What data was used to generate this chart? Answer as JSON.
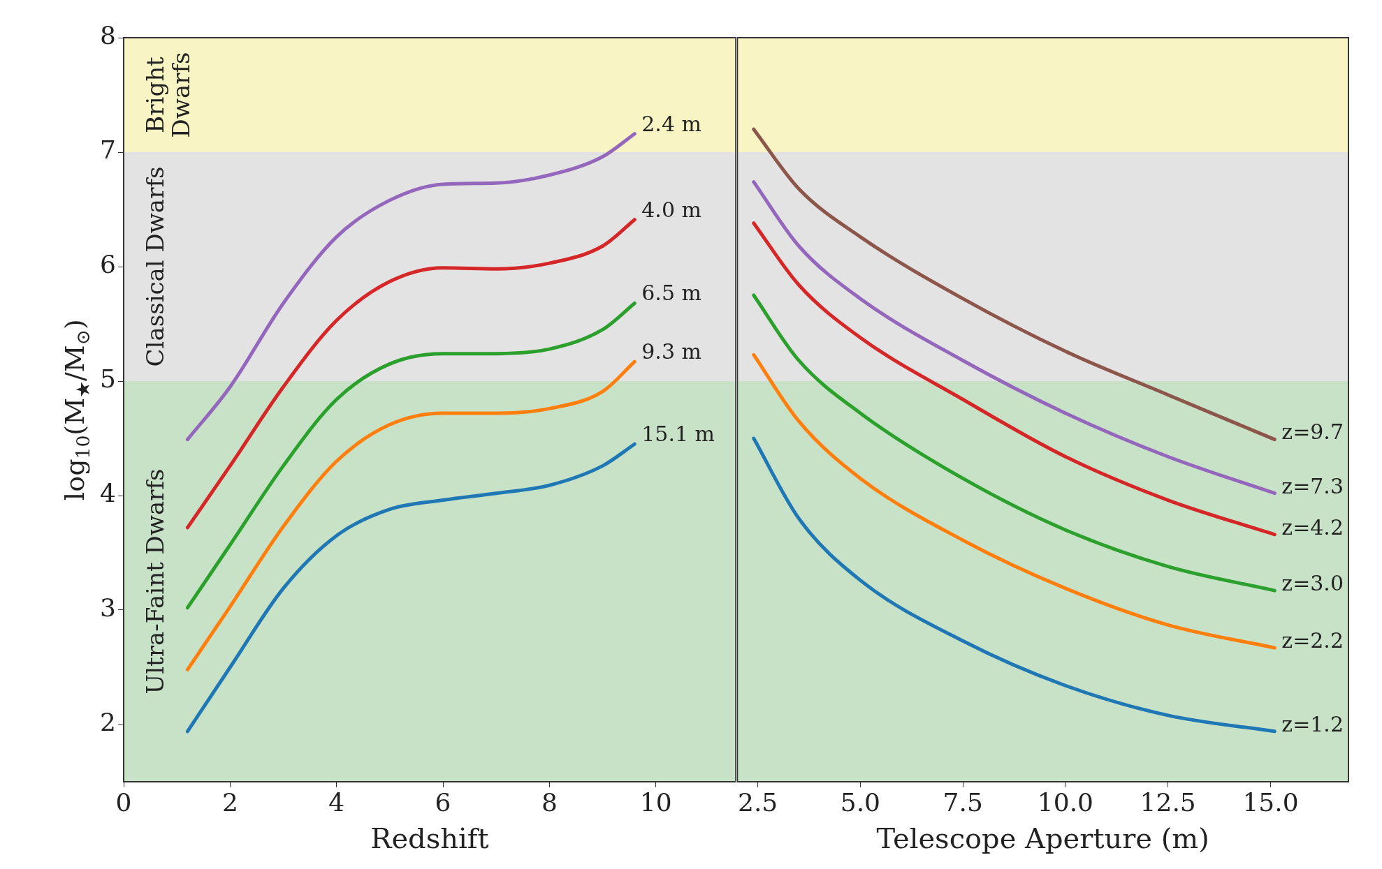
{
  "chart_data": [
    {
      "type": "line",
      "xlabel": "Redshift",
      "ylabel": "log$_{10}$(M$_{★}$/M$_{⊙}$)",
      "xlim": [
        0,
        11.5
      ],
      "xticks": [
        0,
        2,
        4,
        6,
        8,
        10
      ],
      "ylim": [
        1.5,
        8
      ],
      "yticks": [
        2,
        3,
        4,
        5,
        6,
        7,
        8
      ],
      "grid": false,
      "legend": false,
      "marker": "none",
      "x": [
        1.2,
        2,
        3,
        4,
        5,
        6,
        7,
        8,
        9,
        9.6
      ],
      "series": [
        {
          "name": "2.4 m",
          "color": "#9467bd",
          "values": [
            4.49,
            4.95,
            5.68,
            6.26,
            6.58,
            6.72,
            6.73,
            6.8,
            6.96,
            7.16
          ]
        },
        {
          "name": "4.0 m",
          "color": "#d62728",
          "values": [
            3.72,
            4.26,
            4.95,
            5.53,
            5.87,
            5.99,
            5.98,
            6.03,
            6.18,
            6.41
          ]
        },
        {
          "name": "6.5 m",
          "color": "#2ca02c",
          "values": [
            3.02,
            3.57,
            4.26,
            4.84,
            5.15,
            5.24,
            5.24,
            5.28,
            5.45,
            5.68
          ]
        },
        {
          "name": "9.3 m",
          "color": "#ff7f0e",
          "values": [
            2.48,
            3.03,
            3.73,
            4.3,
            4.62,
            4.72,
            4.72,
            4.76,
            4.91,
            5.17
          ]
        },
        {
          "name": "15.1 m",
          "color": "#1f77b4",
          "values": [
            1.94,
            2.5,
            3.19,
            3.65,
            3.88,
            3.96,
            4.02,
            4.09,
            4.26,
            4.45
          ]
        }
      ],
      "bands": [
        {
          "axis": "y",
          "from": 1.5,
          "to": 5,
          "label": "Ultra-Faint Dwarfs",
          "color": "#c8e2c8"
        },
        {
          "axis": "y",
          "from": 5,
          "to": 7,
          "label": "Classical Dwarfs",
          "color": "#e3e3e3"
        },
        {
          "axis": "y",
          "from": 7,
          "to": 8,
          "label": "Bright Dwarfs",
          "color": "#f8f4c4"
        }
      ]
    },
    {
      "type": "line",
      "xlabel": "Telescope Aperture (m)",
      "xlim": [
        2,
        16.9
      ],
      "xticks": [
        {
          "value": 2.5,
          "label": "2.5"
        },
        {
          "value": 5,
          "label": "5.0"
        },
        {
          "value": 7.5,
          "label": "7.5"
        },
        {
          "value": 10,
          "label": "10.0"
        },
        {
          "value": 12.5,
          "label": "12.5"
        },
        {
          "value": 15,
          "label": "15.0"
        }
      ],
      "ylim": [
        1.5,
        8
      ],
      "yticks": [
        2,
        3,
        4,
        5,
        6,
        7,
        8
      ],
      "tick_labels": "x",
      "grid": false,
      "legend": false,
      "marker": "none",
      "x": [
        2.4,
        3.5,
        5,
        7.5,
        10,
        12.5,
        15.1
      ],
      "series": [
        {
          "name": "z=9.7",
          "color": "#8c564b",
          "values": [
            7.2,
            6.68,
            6.26,
            5.72,
            5.26,
            4.88,
            4.49
          ]
        },
        {
          "name": "z=7.3",
          "color": "#9467bd",
          "values": [
            6.74,
            6.18,
            5.72,
            5.18,
            4.72,
            4.34,
            4.02
          ]
        },
        {
          "name": "z=4.2",
          "color": "#d62728",
          "values": [
            6.38,
            5.84,
            5.38,
            4.84,
            4.34,
            3.96,
            3.66
          ]
        },
        {
          "name": "z=3.0",
          "color": "#2ca02c",
          "values": [
            5.75,
            5.18,
            4.72,
            4.15,
            3.7,
            3.38,
            3.17
          ]
        },
        {
          "name": "z=2.2",
          "color": "#ff7f0e",
          "values": [
            5.23,
            4.65,
            4.15,
            3.61,
            3.19,
            2.87,
            2.67
          ]
        },
        {
          "name": "z=1.2",
          "color": "#1f77b4",
          "values": [
            4.5,
            3.8,
            3.26,
            2.73,
            2.34,
            2.08,
            1.94
          ]
        }
      ],
      "bands": [
        {
          "axis": "y",
          "from": 1.5,
          "to": 5,
          "color": "#c8e2c8"
        },
        {
          "axis": "y",
          "from": 5,
          "to": 7,
          "color": "#e3e3e3"
        },
        {
          "axis": "y",
          "from": 7,
          "to": 8,
          "color": "#f8f4c4"
        }
      ]
    }
  ]
}
